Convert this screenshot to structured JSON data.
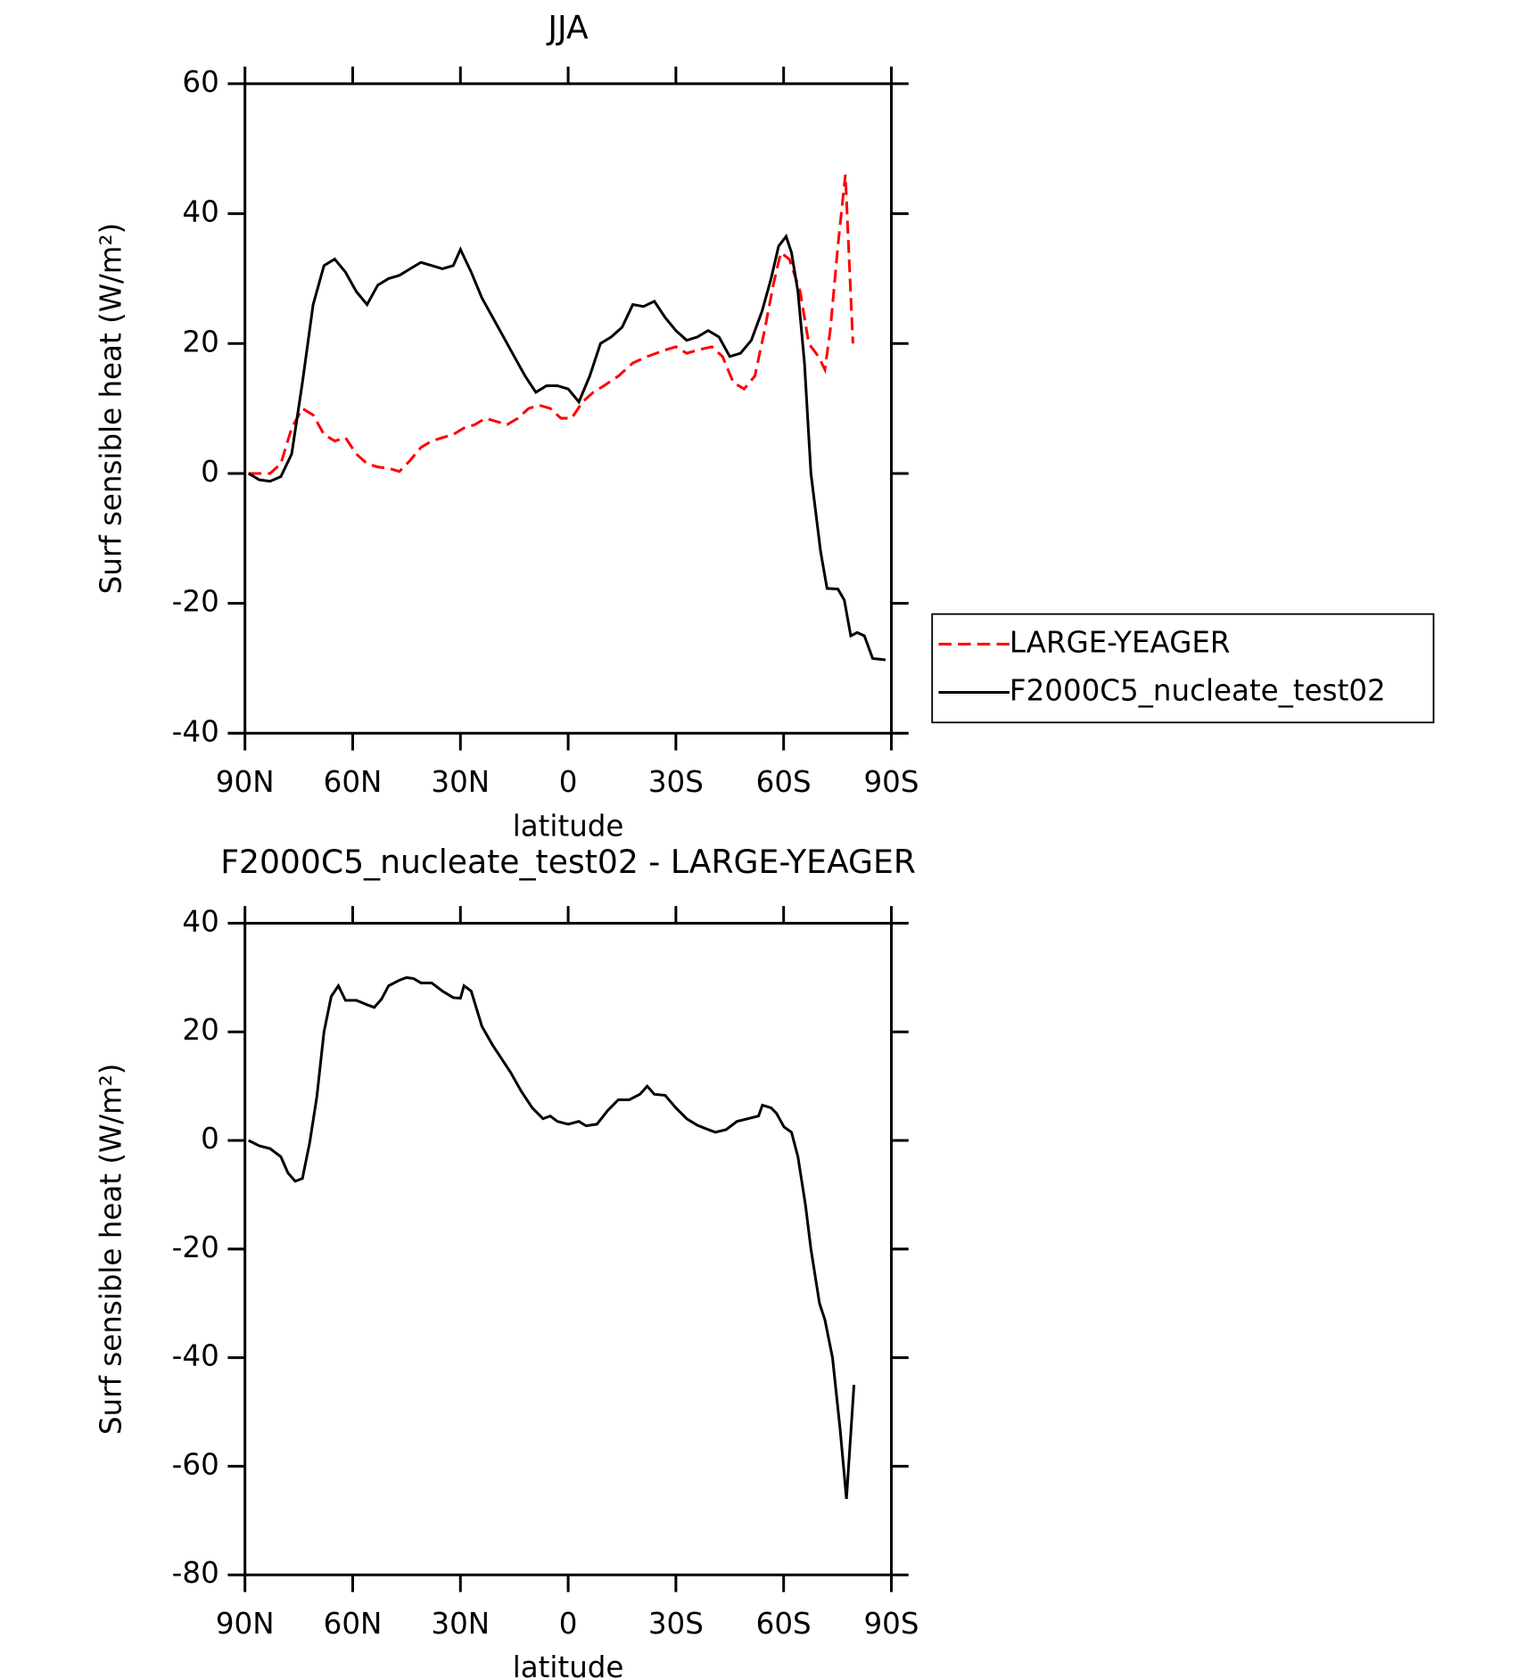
{
  "chart_data": [
    {
      "type": "line",
      "title": "JJA",
      "xlabel": "latitude",
      "ylabel": "Surf sensible heat (W/m²)",
      "xlim": [
        90,
        -90
      ],
      "ylim": [
        -40,
        60
      ],
      "xticks": [
        {
          "value": 90,
          "label": "90N"
        },
        {
          "value": 60,
          "label": "60N"
        },
        {
          "value": 30,
          "label": "30N"
        },
        0,
        {
          "value": -30,
          "label": "30S"
        },
        {
          "value": -60,
          "label": "60S"
        },
        {
          "value": -90,
          "label": "90S"
        }
      ],
      "yticks": [
        -40,
        -20,
        0,
        20,
        40,
        60
      ],
      "legend": "right",
      "series": [
        {
          "name": "LARGE-YEAGER",
          "color": "#ff0000",
          "line_style": "dashed",
          "x": [
            89,
            86,
            83,
            80,
            77,
            74,
            71,
            68,
            65,
            62,
            59,
            56,
            53,
            50,
            47,
            44,
            41,
            38,
            35,
            32,
            29,
            26,
            23,
            20,
            17,
            14,
            11,
            8,
            5,
            2,
            -1,
            -4,
            -7,
            -10,
            -14,
            -18,
            -22,
            -27,
            -30,
            -33,
            -36,
            -40,
            -43,
            -46,
            -49,
            -52,
            -54.7,
            -57.1,
            -59.2,
            -61.6,
            -64.6,
            -67,
            -69.7,
            -71.5,
            -73,
            -75.1,
            -77.2,
            -79.3
          ],
          "values": [
            0,
            0,
            0,
            1.5,
            7,
            10,
            9,
            6,
            5,
            5.5,
            3,
            1.5,
            1,
            0.8,
            0.3,
            2,
            4,
            5,
            5.5,
            6,
            7,
            7.5,
            8.5,
            8,
            7.5,
            8.5,
            10,
            10.5,
            10,
            8.5,
            8.5,
            11,
            12.5,
            13.5,
            15,
            17,
            18,
            19,
            19.5,
            18.5,
            19,
            19.5,
            18,
            14,
            13,
            15,
            22,
            29,
            34,
            33,
            28,
            20,
            18,
            16,
            22,
            35,
            46,
            20
          ]
        },
        {
          "name": "F2000C5_nucleate_test02",
          "color": "#000000",
          "line_style": "solid",
          "x": [
            89,
            86,
            83,
            80,
            77,
            74,
            71,
            68,
            65,
            62,
            59,
            56,
            53,
            50,
            47,
            44,
            41,
            38,
            35,
            32,
            30,
            27,
            24,
            21,
            18,
            15,
            12,
            9,
            6,
            3,
            0,
            -3,
            -6,
            -9,
            -12,
            -15,
            -18,
            -21,
            -24,
            -27,
            -30,
            -33,
            -36,
            -39,
            -42,
            -45,
            -48,
            -51,
            -54,
            -56.5,
            -58.6,
            -60.7,
            -62.2,
            -64,
            -65.8,
            -67.6,
            -70.3,
            -72.1,
            -75.1,
            -76.9,
            -78.7,
            -80.5,
            -82.5,
            -84.8,
            -88.4
          ],
          "values": [
            0,
            -1,
            -1.2,
            -0.5,
            3,
            14,
            26,
            32,
            33,
            31,
            28,
            26,
            29,
            30,
            30.5,
            31.5,
            32.5,
            32,
            31.5,
            32,
            34.5,
            31,
            27,
            24,
            21,
            18,
            15,
            12.5,
            13.5,
            13.5,
            13,
            11,
            15,
            20,
            21,
            22.5,
            26,
            25.7,
            26.5,
            24,
            22,
            20.5,
            21,
            22,
            21,
            18,
            18.5,
            20.5,
            25,
            30,
            35,
            36.5,
            34,
            28,
            17,
            0,
            -12,
            -17.7,
            -17.8,
            -19.5,
            -25,
            -24.5,
            -25,
            -28.5,
            -28.7
          ]
        }
      ]
    },
    {
      "type": "line",
      "title": "F2000C5_nucleate_test02 - LARGE-YEAGER",
      "xlabel": "latitude",
      "ylabel": "Surf sensible heat (W/m²)",
      "xlim": [
        90,
        -90
      ],
      "ylim": [
        -80,
        40
      ],
      "xticks": [
        {
          "value": 90,
          "label": "90N"
        },
        {
          "value": 60,
          "label": "60N"
        },
        {
          "value": 30,
          "label": "30N"
        },
        0,
        {
          "value": -30,
          "label": "30S"
        },
        {
          "value": -60,
          "label": "60S"
        },
        {
          "value": -90,
          "label": "90S"
        }
      ],
      "yticks": [
        -80,
        -60,
        -40,
        -20,
        0,
        20,
        40
      ],
      "series": [
        {
          "color": "#000000",
          "line_style": "solid",
          "x": [
            89,
            86,
            83,
            80,
            78,
            76,
            74,
            72,
            70,
            68,
            66,
            64,
            62,
            59,
            56,
            54,
            52,
            50,
            47,
            45,
            43,
            41,
            38,
            35,
            32,
            30,
            29,
            27,
            24,
            21,
            19,
            16,
            13,
            10,
            7,
            5,
            3,
            0,
            -3,
            -5,
            -8,
            -11,
            -14,
            -17,
            -20,
            -22,
            -24,
            -27,
            -30,
            -33,
            -36,
            -39,
            -41,
            -44,
            -47,
            -50,
            -53,
            -54.1,
            -56.5,
            -58,
            -60.1,
            -62.2,
            -64,
            -66.1,
            -67.6,
            -70,
            -71.5,
            -73.6,
            -75.7,
            -77.5,
            -79.6
          ],
          "values": [
            0,
            -1,
            -1.5,
            -3,
            -6,
            -7.5,
            -7,
            -0.5,
            8,
            20,
            26.5,
            28.5,
            25.8,
            25.8,
            25,
            24.5,
            26,
            28.5,
            29.5,
            30,
            29.8,
            29,
            29,
            27.5,
            26.3,
            26.2,
            28.5,
            27.5,
            21,
            17.5,
            15.5,
            12.5,
            9,
            6,
            4,
            4.5,
            3.5,
            3,
            3.5,
            2.7,
            3,
            5.5,
            7.5,
            7.5,
            8.5,
            10,
            8.5,
            8.3,
            6,
            4,
            2.8,
            2,
            1.5,
            2,
            3.5,
            4,
            4.5,
            6.5,
            6,
            5,
            2.5,
            1.5,
            -3,
            -12,
            -20,
            -30,
            -33,
            -40,
            -53,
            -66,
            -45
          ]
        }
      ]
    }
  ]
}
